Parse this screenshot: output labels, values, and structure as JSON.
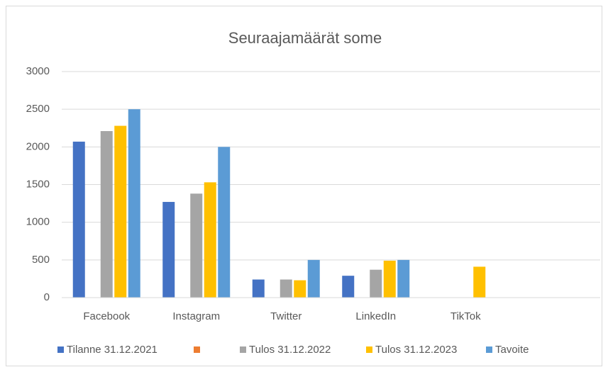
{
  "chart_data": {
    "type": "bar",
    "title": "Seuraajamäärät some",
    "categories": [
      "Facebook",
      "Instagram",
      "Twitter",
      "LinkedIn",
      "TikTok",
      null
    ],
    "series": [
      {
        "name": "Tilanne 31.12.2021",
        "color": "#4472c4",
        "values": [
          2070,
          1270,
          240,
          290,
          null,
          null
        ]
      },
      {
        "name": null,
        "color": "#ed7d31",
        "values": [
          null,
          null,
          null,
          null,
          null,
          null
        ]
      },
      {
        "name": "Tulos 31.12.2022",
        "color": "#a5a5a5",
        "values": [
          2210,
          1380,
          240,
          370,
          null,
          null
        ]
      },
      {
        "name": "Tulos 31.12.2023",
        "color": "#ffc000",
        "values": [
          2280,
          1530,
          230,
          490,
          410,
          null
        ]
      },
      {
        "name": "Tavoite",
        "color": "#5b9bd5",
        "values": [
          2500,
          2000,
          500,
          500,
          null,
          null
        ]
      }
    ],
    "ylim": [
      0,
      3000
    ],
    "yticks": [
      0,
      500,
      1000,
      1500,
      2000,
      2500,
      3000
    ],
    "grid": true,
    "legend": "bottom"
  }
}
